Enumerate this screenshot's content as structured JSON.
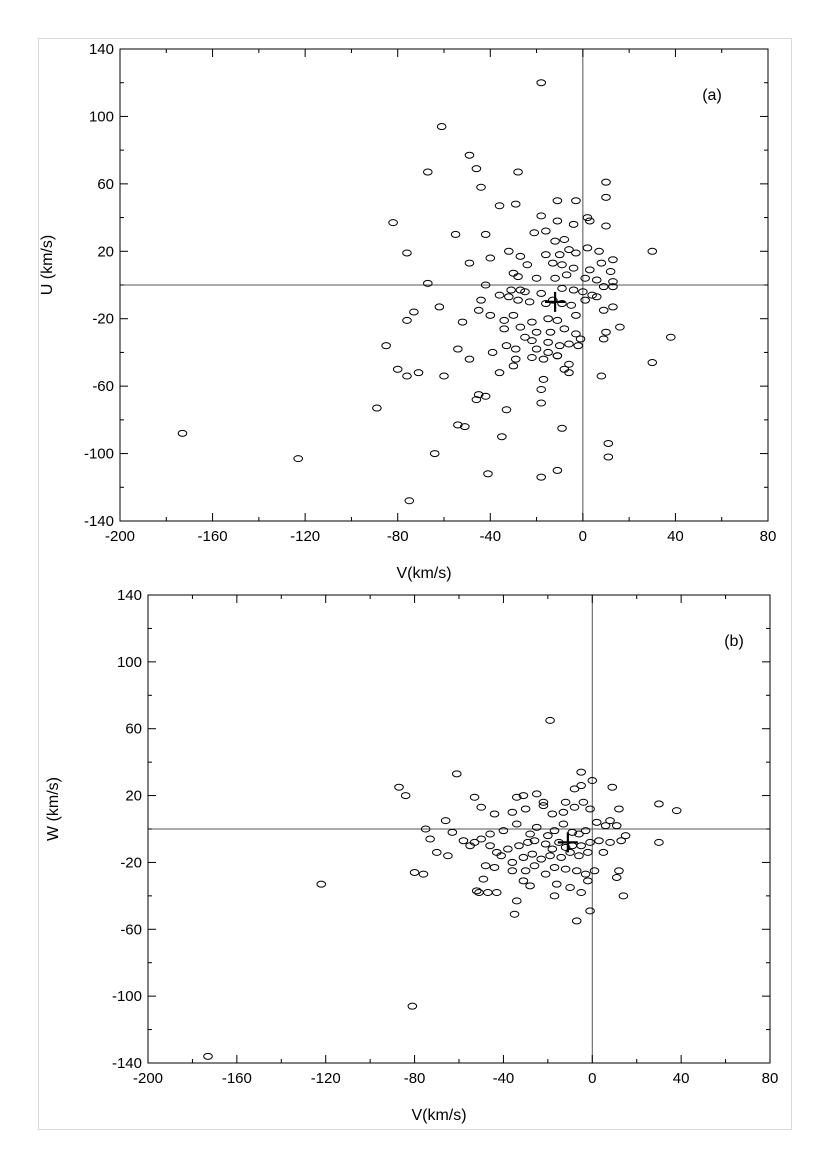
{
  "chart_data": [
    {
      "type": "scatter",
      "panel_label": "(a)",
      "xlabel": "V(km/s)",
      "ylabel": "U (km/s)",
      "xlim": [
        -200,
        80
      ],
      "ylim": [
        -140,
        140
      ],
      "xticks": [
        "-200",
        "-160",
        "-120",
        "-80",
        "-40",
        "0",
        "40",
        "80"
      ],
      "yticks": [
        "140",
        "100",
        "60",
        "20",
        "-20",
        "-60",
        "-100",
        "-140"
      ],
      "reference_lines": {
        "x": 0,
        "y": 0
      },
      "mean_marker": {
        "x": -12,
        "y": -10
      },
      "points": [
        [
          -18,
          120
        ],
        [
          -61,
          94
        ],
        [
          -49,
          77
        ],
        [
          -46,
          69
        ],
        [
          -67,
          67
        ],
        [
          -28,
          67
        ],
        [
          -44,
          58
        ],
        [
          10,
          61
        ],
        [
          10,
          52
        ],
        [
          -11,
          50
        ],
        [
          -3,
          50
        ],
        [
          -29,
          48
        ],
        [
          -36,
          47
        ],
        [
          -82,
          37
        ],
        [
          -18,
          41
        ],
        [
          -11,
          38
        ],
        [
          2,
          40
        ],
        [
          3,
          38
        ],
        [
          10,
          35
        ],
        [
          -55,
          30
        ],
        [
          -42,
          30
        ],
        [
          -21,
          31
        ],
        [
          -16,
          32
        ],
        [
          -4,
          36
        ],
        [
          -12,
          26
        ],
        [
          -8,
          27
        ],
        [
          -6,
          21
        ],
        [
          2,
          22
        ],
        [
          -76,
          19
        ],
        [
          -32,
          20
        ],
        [
          -27,
          17
        ],
        [
          -16,
          18
        ],
        [
          -10,
          18
        ],
        [
          -3,
          19
        ],
        [
          7,
          20
        ],
        [
          13,
          15
        ],
        [
          30,
          20
        ],
        [
          -49,
          13
        ],
        [
          -40,
          16
        ],
        [
          -24,
          12
        ],
        [
          -13,
          13
        ],
        [
          -9,
          12
        ],
        [
          -4,
          10
        ],
        [
          3,
          9
        ],
        [
          8,
          13
        ],
        [
          12,
          8
        ],
        [
          -30,
          7
        ],
        [
          -28,
          5
        ],
        [
          -20,
          4
        ],
        [
          -12,
          4
        ],
        [
          -7,
          6
        ],
        [
          1,
          4
        ],
        [
          6,
          3
        ],
        [
          13,
          2
        ],
        [
          -67,
          1
        ],
        [
          -42,
          0
        ],
        [
          -31,
          -3
        ],
        [
          -27,
          -3
        ],
        [
          -25,
          -4
        ],
        [
          -18,
          -5
        ],
        [
          -9,
          -2
        ],
        [
          -4,
          -3
        ],
        [
          0,
          -4
        ],
        [
          4,
          -6
        ],
        [
          9,
          -1
        ],
        [
          13,
          -1
        ],
        [
          -36,
          -6
        ],
        [
          -32,
          -7
        ],
        [
          -28,
          -9
        ],
        [
          -23,
          -10
        ],
        [
          -16,
          -11
        ],
        [
          -13,
          -9
        ],
        [
          -9,
          -11
        ],
        [
          -5,
          -12
        ],
        [
          1,
          -9
        ],
        [
          6,
          -7
        ],
        [
          -62,
          -13
        ],
        [
          -73,
          -16
        ],
        [
          -76,
          -21
        ],
        [
          -44,
          -9
        ],
        [
          -45,
          -15
        ],
        [
          -52,
          -22
        ],
        [
          -40,
          -18
        ],
        [
          -30,
          -18
        ],
        [
          -34,
          -21
        ],
        [
          -22,
          -22
        ],
        [
          -15,
          -20
        ],
        [
          -11,
          -21
        ],
        [
          -3,
          -18
        ],
        [
          9,
          -15
        ],
        [
          13,
          -13
        ],
        [
          -34,
          -26
        ],
        [
          -27,
          -25
        ],
        [
          -20,
          -28
        ],
        [
          -14,
          -28
        ],
        [
          -8,
          -26
        ],
        [
          -3,
          -29
        ],
        [
          10,
          -28
        ],
        [
          16,
          -25
        ],
        [
          -25,
          -31
        ],
        [
          -22,
          -33
        ],
        [
          -15,
          -34
        ],
        [
          -10,
          -36
        ],
        [
          -6,
          -35
        ],
        [
          -1,
          -32
        ],
        [
          -33,
          -36
        ],
        [
          -29,
          -38
        ],
        [
          -20,
          -38
        ],
        [
          -15,
          -40
        ],
        [
          -11,
          -42
        ],
        [
          -2,
          -36
        ],
        [
          9,
          -32
        ],
        [
          -85,
          -36
        ],
        [
          -54,
          -38
        ],
        [
          -49,
          -44
        ],
        [
          -39,
          -40
        ],
        [
          -29,
          -44
        ],
        [
          -22,
          -43
        ],
        [
          -17,
          -44
        ],
        [
          -11,
          -42
        ],
        [
          -6,
          -47
        ],
        [
          38,
          -31
        ],
        [
          30,
          -46
        ],
        [
          -80,
          -50
        ],
        [
          -76,
          -54
        ],
        [
          -71,
          -52
        ],
        [
          -60,
          -54
        ],
        [
          -36,
          -52
        ],
        [
          -30,
          -48
        ],
        [
          -17,
          -56
        ],
        [
          -8,
          -50
        ],
        [
          -6,
          -52
        ],
        [
          8,
          -54
        ],
        [
          -18,
          -62
        ],
        [
          -42,
          -66
        ],
        [
          -46,
          -68
        ],
        [
          -45,
          -65
        ],
        [
          -18,
          -70
        ],
        [
          -33,
          -74
        ],
        [
          -89,
          -73
        ],
        [
          -54,
          -83
        ],
        [
          -51,
          -84
        ],
        [
          -35,
          -90
        ],
        [
          -9,
          -85
        ],
        [
          -173,
          -88
        ],
        [
          -64,
          -100
        ],
        [
          -123,
          -103
        ],
        [
          11,
          -94
        ],
        [
          11,
          -102
        ],
        [
          -41,
          -112
        ],
        [
          -18,
          -114
        ],
        [
          -11,
          -110
        ],
        [
          -75,
          -128
        ]
      ]
    },
    {
      "type": "scatter",
      "panel_label": "(b)",
      "xlabel": "V(km/s)",
      "ylabel": "W (km/s)",
      "xlim": [
        -200,
        80
      ],
      "ylim": [
        -140,
        140
      ],
      "xticks": [
        "-200",
        "-160",
        "-120",
        "-80",
        "-40",
        "0",
        "40",
        "80"
      ],
      "yticks": [
        "140",
        "100",
        "60",
        "20",
        "-20",
        "-60",
        "-100",
        "-140"
      ],
      "reference_lines": {
        "x": 0,
        "y": 0
      },
      "mean_marker": {
        "x": -11,
        "y": -8
      },
      "points": [
        [
          -19,
          65
        ],
        [
          -61,
          33
        ],
        [
          -5,
          34
        ],
        [
          0,
          29
        ],
        [
          -87,
          25
        ],
        [
          -84,
          20
        ],
        [
          -53,
          19
        ],
        [
          -34,
          19
        ],
        [
          -31,
          20
        ],
        [
          -25,
          21
        ],
        [
          -22,
          16
        ],
        [
          -12,
          16
        ],
        [
          -8,
          24
        ],
        [
          -5,
          26
        ],
        [
          9,
          25
        ],
        [
          30,
          15
        ],
        [
          38,
          11
        ],
        [
          -66,
          5
        ],
        [
          -50,
          13
        ],
        [
          -44,
          9
        ],
        [
          -36,
          10
        ],
        [
          -30,
          12
        ],
        [
          -22,
          14
        ],
        [
          -18,
          9
        ],
        [
          -13,
          10
        ],
        [
          -8,
          13
        ],
        [
          -4,
          16
        ],
        [
          -1,
          12
        ],
        [
          8,
          5
        ],
        [
          12,
          12
        ],
        [
          -75,
          0
        ],
        [
          -63,
          -2
        ],
        [
          -58,
          -7
        ],
        [
          -50,
          -6
        ],
        [
          -46,
          -3
        ],
        [
          -40,
          -1
        ],
        [
          -34,
          3
        ],
        [
          -28,
          -3
        ],
        [
          -25,
          1
        ],
        [
          -20,
          -4
        ],
        [
          -17,
          -1
        ],
        [
          -13,
          3
        ],
        [
          -9,
          -2
        ],
        [
          -6,
          -3
        ],
        [
          -3,
          -1
        ],
        [
          2,
          4
        ],
        [
          6,
          2
        ],
        [
          11,
          2
        ],
        [
          -73,
          -6
        ],
        [
          -70,
          -14
        ],
        [
          -65,
          -16
        ],
        [
          -55,
          -10
        ],
        [
          -53,
          -8
        ],
        [
          -46,
          -10
        ],
        [
          -43,
          -14
        ],
        [
          -38,
          -12
        ],
        [
          -33,
          -10
        ],
        [
          -29,
          -8
        ],
        [
          -26,
          -7
        ],
        [
          -21,
          -9
        ],
        [
          -18,
          -12
        ],
        [
          -15,
          -8
        ],
        [
          -12,
          -11
        ],
        [
          -9,
          -10
        ],
        [
          -5,
          -10
        ],
        [
          -1,
          -8
        ],
        [
          3,
          -7
        ],
        [
          8,
          -8
        ],
        [
          13,
          -7
        ],
        [
          15,
          -4
        ],
        [
          30,
          -8
        ],
        [
          -41,
          -16
        ],
        [
          -36,
          -20
        ],
        [
          -31,
          -17
        ],
        [
          -27,
          -15
        ],
        [
          -23,
          -18
        ],
        [
          -19,
          -16
        ],
        [
          -14,
          -17
        ],
        [
          -10,
          -14
        ],
        [
          -6,
          -16
        ],
        [
          -2,
          -14
        ],
        [
          5,
          -14
        ],
        [
          -76,
          -27
        ],
        [
          -80,
          -26
        ],
        [
          -48,
          -22
        ],
        [
          -44,
          -23
        ],
        [
          -36,
          -25
        ],
        [
          -30,
          -25
        ],
        [
          -26,
          -22
        ],
        [
          -21,
          -27
        ],
        [
          -17,
          -23
        ],
        [
          -12,
          -24
        ],
        [
          -7,
          -25
        ],
        [
          -3,
          -27
        ],
        [
          1,
          -25
        ],
        [
          12,
          -25
        ],
        [
          -122,
          -33
        ],
        [
          -49,
          -30
        ],
        [
          -31,
          -31
        ],
        [
          -28,
          -34
        ],
        [
          -16,
          -33
        ],
        [
          -10,
          -35
        ],
        [
          -2,
          -31
        ],
        [
          11,
          -29
        ],
        [
          -52,
          -37
        ],
        [
          -51,
          -38
        ],
        [
          -43,
          -38
        ],
        [
          -47,
          -38
        ],
        [
          -34,
          -43
        ],
        [
          -17,
          -40
        ],
        [
          -5,
          -38
        ],
        [
          14,
          -40
        ],
        [
          -35,
          -51
        ],
        [
          -1,
          -49
        ],
        [
          -7,
          -55
        ],
        [
          -81,
          -106
        ],
        [
          -173,
          -136
        ]
      ]
    }
  ]
}
